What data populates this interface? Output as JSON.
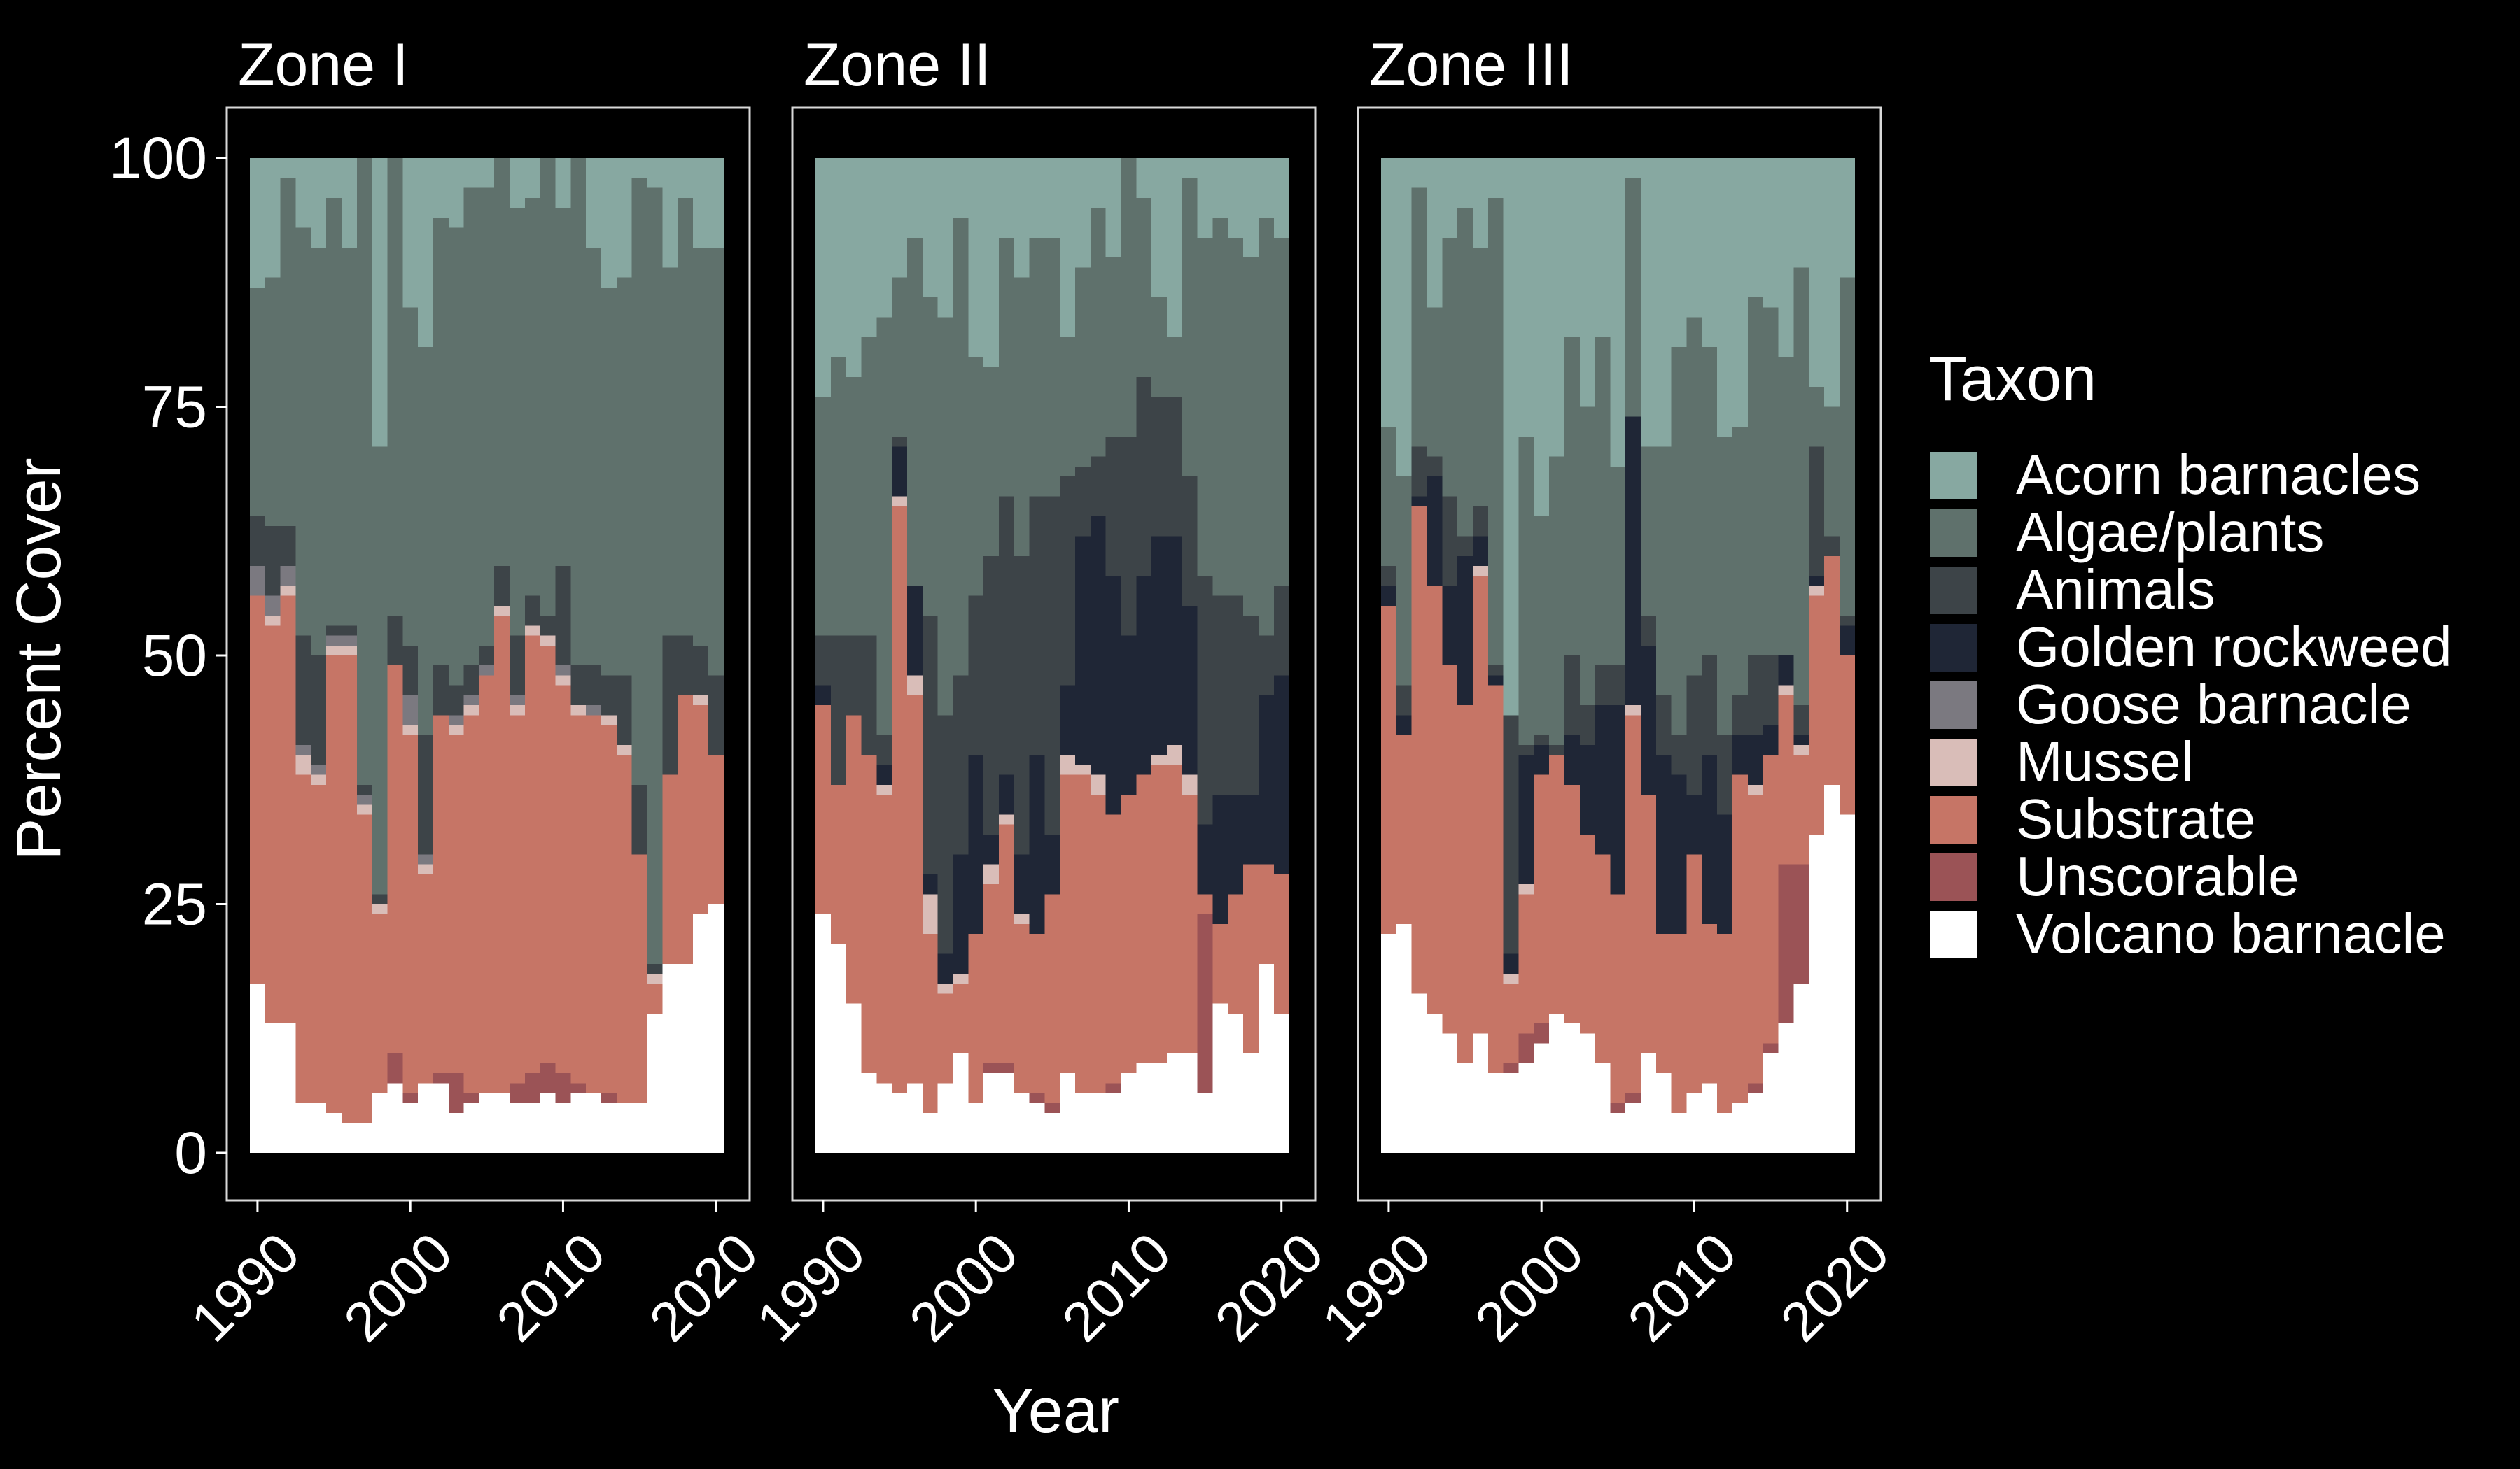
{
  "chart_data": {
    "type": "stacked-bar",
    "xlabel": "Year",
    "ylabel": "Percent Cover",
    "ylim": [
      0,
      100
    ],
    "yticks": [
      0,
      25,
      50,
      75,
      100
    ],
    "xticks": [
      1990,
      2000,
      2010,
      2020
    ],
    "grid": false,
    "legend": {
      "title": "Taxon",
      "position": "right"
    },
    "taxa": [
      {
        "name": "Volcano barnacle",
        "color": "#ffffff"
      },
      {
        "name": "Unscorable",
        "color": "#9b5356"
      },
      {
        "name": "Substrate",
        "color": "#c67566"
      },
      {
        "name": "Mussel",
        "color": "#d9bdb8"
      },
      {
        "name": "Goose barnacle",
        "color": "#7b7980"
      },
      {
        "name": "Golden rockweed",
        "color": "#1f2636"
      },
      {
        "name": "Animals",
        "color": "#3d4448"
      },
      {
        "name": "Algae/plants",
        "color": "#5f716c"
      },
      {
        "name": "Acorn barnacles",
        "color": "#87a8a1"
      }
    ],
    "legend_order": [
      "Acorn barnacles",
      "Algae/plants",
      "Animals",
      "Golden rockweed",
      "Goose barnacle",
      "Mussel",
      "Substrate",
      "Unscorable",
      "Volcano barnacle"
    ],
    "years": [
      1990,
      1991,
      1992,
      1993,
      1994,
      1995,
      1996,
      1997,
      1998,
      1999,
      2000,
      2001,
      2002,
      2003,
      2004,
      2005,
      2006,
      2007,
      2008,
      2009,
      2010,
      2011,
      2012,
      2013,
      2014,
      2015,
      2016,
      2017,
      2018,
      2019,
      2020
    ],
    "panels": [
      {
        "title": "Zone I",
        "cumulative_tops": {
          "Volcano barnacle": [
            17,
            13,
            13,
            5,
            5,
            4,
            3,
            3,
            6,
            7,
            5,
            7,
            7,
            4,
            5,
            6,
            6,
            5,
            5,
            6,
            5,
            6,
            6,
            5,
            5,
            5,
            14,
            19,
            19,
            24,
            25
          ],
          "Unscorable": [
            17,
            13,
            13,
            5,
            5,
            4,
            3,
            3,
            6,
            10,
            6,
            7,
            8,
            8,
            6,
            6,
            6,
            7,
            8,
            9,
            8,
            7,
            6,
            6,
            5,
            5,
            14,
            19,
            19,
            24,
            25
          ],
          "Substrate": [
            56,
            53,
            56,
            38,
            37,
            50,
            50,
            34,
            24,
            49,
            42,
            28,
            44,
            42,
            44,
            48,
            54,
            44,
            52,
            51,
            47,
            44,
            44,
            43,
            40,
            30,
            17,
            38,
            46,
            45,
            40
          ],
          "Mussel": [
            56,
            54,
            57,
            40,
            38,
            51,
            51,
            35,
            25,
            49,
            43,
            29,
            44,
            43,
            45,
            48,
            55,
            45,
            53,
            52,
            48,
            45,
            44,
            44,
            41,
            30,
            18,
            38,
            46,
            46,
            40
          ],
          "Goose barnacle": [
            59,
            56,
            59,
            41,
            39,
            52,
            52,
            36,
            25,
            49,
            46,
            30,
            44,
            44,
            46,
            49,
            55,
            46,
            53,
            52,
            49,
            45,
            45,
            44,
            41,
            30,
            18,
            38,
            46,
            46,
            40
          ],
          "Golden rockweed": [
            59,
            56,
            59,
            41,
            39,
            52,
            52,
            36,
            25,
            49,
            46,
            30,
            44,
            44,
            46,
            49,
            55,
            46,
            53,
            52,
            49,
            45,
            45,
            44,
            41,
            30,
            18,
            38,
            46,
            46,
            40
          ],
          "Animals": [
            64,
            63,
            63,
            52,
            50,
            53,
            53,
            37,
            26,
            54,
            51,
            42,
            49,
            47,
            49,
            51,
            59,
            52,
            56,
            54,
            59,
            49,
            49,
            48,
            48,
            37,
            19,
            52,
            52,
            51,
            48
          ],
          "Algae/plants": [
            87,
            88,
            98,
            93,
            91,
            96,
            91,
            100,
            71,
            100,
            85,
            81,
            94,
            93,
            97,
            97,
            100,
            95,
            96,
            100,
            95,
            100,
            91,
            87,
            88,
            98,
            97,
            89,
            96,
            91,
            91
          ],
          "Acorn barnacles": [
            100,
            100,
            100,
            100,
            100,
            100,
            100,
            100,
            100,
            100,
            100,
            100,
            100,
            100,
            100,
            100,
            100,
            100,
            100,
            100,
            100,
            100,
            100,
            100,
            100,
            100,
            100,
            100,
            100,
            100,
            100
          ]
        }
      },
      {
        "title": "Zone II",
        "cumulative_tops": {
          "Volcano barnacle": [
            24,
            21,
            15,
            8,
            7,
            6,
            7,
            4,
            7,
            10,
            5,
            8,
            8,
            6,
            5,
            4,
            8,
            6,
            6,
            6,
            8,
            9,
            9,
            10,
            10,
            6,
            15,
            14,
            10,
            19,
            14
          ],
          "Unscorable": [
            24,
            21,
            15,
            8,
            7,
            6,
            7,
            4,
            7,
            10,
            5,
            9,
            9,
            6,
            6,
            5,
            8,
            6,
            6,
            7,
            8,
            9,
            9,
            10,
            10,
            24,
            15,
            14,
            10,
            19,
            14
          ],
          "Substrate": [
            45,
            37,
            44,
            40,
            36,
            65,
            46,
            22,
            16,
            17,
            22,
            27,
            33,
            23,
            22,
            26,
            38,
            38,
            36,
            34,
            36,
            38,
            39,
            39,
            36,
            26,
            23,
            26,
            29,
            29,
            28
          ],
          "Mussel": [
            45,
            37,
            44,
            40,
            37,
            66,
            48,
            26,
            17,
            18,
            22,
            29,
            34,
            24,
            22,
            26,
            40,
            39,
            38,
            34,
            36,
            38,
            40,
            41,
            38,
            26,
            23,
            26,
            29,
            29,
            28
          ],
          "Goose barnacle": [
            45,
            37,
            44,
            40,
            37,
            66,
            48,
            26,
            17,
            18,
            22,
            29,
            34,
            24,
            22,
            26,
            40,
            39,
            38,
            34,
            36,
            38,
            40,
            41,
            38,
            26,
            23,
            26,
            29,
            29,
            28
          ],
          "Golden rockweed": [
            47,
            37,
            44,
            40,
            39,
            71,
            57,
            28,
            20,
            30,
            40,
            32,
            38,
            30,
            40,
            32,
            47,
            62,
            64,
            58,
            52,
            58,
            62,
            62,
            55,
            33,
            36,
            36,
            36,
            46,
            48
          ],
          "Animals": [
            52,
            52,
            52,
            52,
            42,
            72,
            57,
            54,
            44,
            48,
            56,
            60,
            66,
            60,
            66,
            66,
            68,
            69,
            70,
            72,
            72,
            78,
            76,
            76,
            68,
            58,
            56,
            56,
            54,
            52,
            57
          ],
          "Algae/plants": [
            76,
            80,
            78,
            82,
            84,
            88,
            92,
            86,
            84,
            94,
            80,
            79,
            92,
            88,
            92,
            92,
            82,
            89,
            95,
            90,
            100,
            96,
            86,
            82,
            98,
            92,
            94,
            92,
            90,
            94,
            92
          ],
          "Acorn barnacles": [
            100,
            100,
            100,
            100,
            100,
            100,
            100,
            100,
            100,
            100,
            100,
            100,
            100,
            100,
            100,
            100,
            100,
            100,
            100,
            100,
            100,
            100,
            100,
            100,
            100,
            100,
            100,
            100,
            100,
            100,
            100
          ]
        }
      },
      {
        "title": "Zone III",
        "cumulative_tops": {
          "Volcano barnacle": [
            22,
            23,
            16,
            14,
            12,
            9,
            12,
            8,
            8,
            9,
            11,
            14,
            13,
            12,
            9,
            4,
            5,
            10,
            8,
            4,
            6,
            7,
            4,
            5,
            6,
            10,
            13,
            17,
            32,
            37,
            34
          ],
          "Unscorable": [
            22,
            23,
            16,
            14,
            12,
            9,
            12,
            8,
            9,
            12,
            13,
            14,
            13,
            12,
            9,
            5,
            6,
            10,
            8,
            4,
            6,
            7,
            4,
            5,
            7,
            11,
            29,
            29,
            32,
            37,
            34
          ],
          "Substrate": [
            55,
            42,
            65,
            57,
            49,
            45,
            58,
            47,
            17,
            26,
            38,
            40,
            37,
            32,
            30,
            26,
            44,
            36,
            22,
            22,
            30,
            23,
            22,
            38,
            36,
            40,
            46,
            40,
            56,
            60,
            50
          ],
          "Mussel": [
            55,
            42,
            65,
            57,
            49,
            45,
            59,
            47,
            18,
            27,
            38,
            40,
            37,
            32,
            30,
            26,
            45,
            36,
            22,
            22,
            30,
            23,
            22,
            38,
            37,
            40,
            47,
            41,
            57,
            60,
            50
          ],
          "Goose barnacle": [
            55,
            42,
            65,
            57,
            49,
            45,
            59,
            47,
            18,
            27,
            38,
            40,
            37,
            32,
            30,
            26,
            45,
            36,
            22,
            22,
            30,
            23,
            22,
            38,
            37,
            40,
            47,
            41,
            57,
            60,
            50
          ],
          "Golden rockweed": [
            57,
            44,
            66,
            68,
            57,
            60,
            62,
            48,
            20,
            40,
            41,
            40,
            42,
            41,
            45,
            45,
            74,
            51,
            40,
            38,
            36,
            40,
            34,
            42,
            42,
            43,
            50,
            42,
            58,
            60,
            53
          ],
          "Animals": [
            59,
            47,
            71,
            70,
            66,
            62,
            65,
            49,
            44,
            41,
            42,
            41,
            50,
            45,
            49,
            49,
            74,
            54,
            46,
            42,
            48,
            50,
            42,
            46,
            50,
            50,
            50,
            45,
            71,
            62,
            54
          ],
          "Algae/plants": [
            73,
            68,
            97,
            85,
            92,
            95,
            91,
            96,
            43,
            72,
            64,
            70,
            82,
            75,
            82,
            69,
            98,
            71,
            71,
            81,
            84,
            81,
            72,
            73,
            86,
            85,
            80,
            89,
            77,
            75,
            88
          ],
          "Acorn barnacles": [
            100,
            100,
            100,
            100,
            100,
            100,
            100,
            100,
            100,
            100,
            100,
            100,
            100,
            100,
            100,
            100,
            100,
            100,
            100,
            100,
            100,
            100,
            100,
            100,
            100,
            100,
            100,
            100,
            100,
            100,
            100
          ]
        }
      }
    ]
  }
}
